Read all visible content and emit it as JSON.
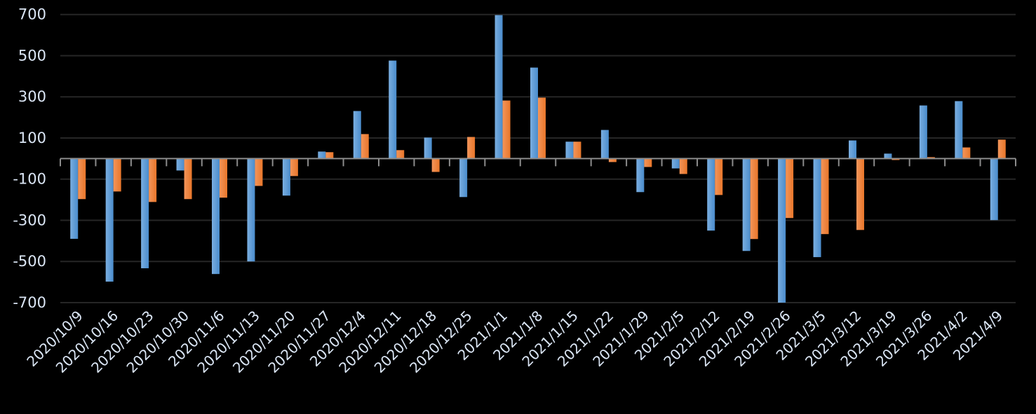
{
  "chart_data": {
    "type": "bar",
    "title": "",
    "xlabel": "",
    "ylabel": "",
    "ylim": [
      -700,
      700
    ],
    "yticks": [
      700,
      500,
      300,
      100,
      -100,
      -300,
      -500,
      -700
    ],
    "grid": true,
    "legend": "none",
    "categories": [
      "2020/10/9",
      "2020/10/16",
      "2020/10/23",
      "2020/10/30",
      "2020/11/6",
      "2020/11/13",
      "2020/11/20",
      "2020/11/27",
      "2020/12/4",
      "2020/12/11",
      "2020/12/18",
      "2020/12/25",
      "2021/1/1",
      "2021/1/8",
      "2021/1/15",
      "2021/1/22",
      "2021/1/29",
      "2021/2/5",
      "2021/2/12",
      "2021/2/19",
      "2021/2/26",
      "2021/3/5",
      "2021/3/12",
      "2021/3/19",
      "2021/3/26",
      "2021/4/2",
      "2021/4/9"
    ],
    "series": [
      {
        "color": "#5b9bd5",
        "values": [
          -390,
          -598,
          -533,
          -58,
          -561,
          -500,
          -180,
          34,
          231,
          476,
          102,
          -187,
          697,
          442,
          82,
          139,
          -163,
          -48,
          -350,
          -449,
          -700,
          -479,
          88,
          24,
          258,
          279,
          -299
        ]
      },
      {
        "color": "#ed7d31",
        "values": [
          -197,
          -160,
          -211,
          -197,
          -190,
          -133,
          -85,
          31,
          119,
          41,
          -65,
          105,
          282,
          296,
          82,
          -17,
          -41,
          -75,
          -177,
          -391,
          -289,
          -367,
          -347,
          -7,
          7,
          54,
          92
        ]
      }
    ]
  }
}
